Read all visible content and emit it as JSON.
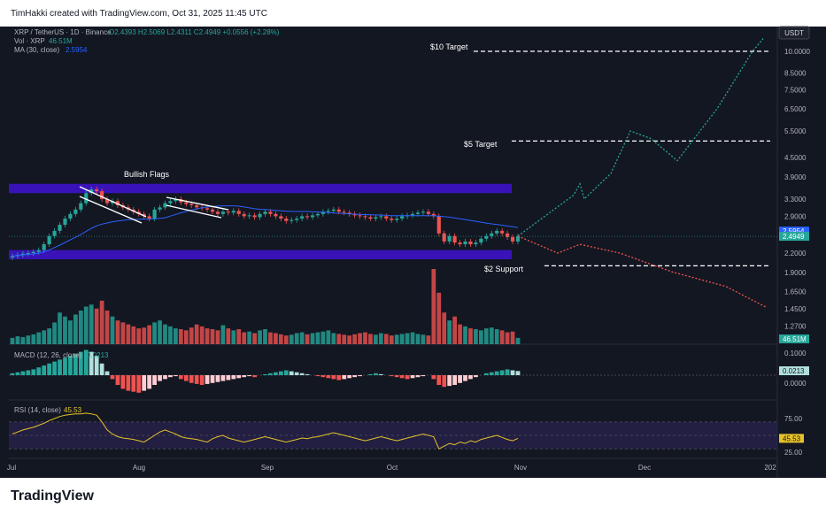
{
  "header": {
    "attribution": "TimHakki created with TradingView.com, Oct 31, 2025 11:45 UTC"
  },
  "legend": {
    "symbol": "XRP / TetherUS · 1D · Binance",
    "ohlc": "O2.4393 H2.5069 L2.4311 C2.4949 +0.0556 (+2.28%)",
    "vol_label": "Vol · XRP",
    "vol_value": "46.51M",
    "ma_label": "MA (30, close)",
    "ma_value": "2.5954"
  },
  "currency_button": "USDT",
  "footer": {
    "logo": "TradingView"
  },
  "colors": {
    "bg": "#131722",
    "up": "#26a69a",
    "down": "#ef5350",
    "zone": "#3913b8",
    "ma": "#2962ff",
    "rsi": "#e6c229",
    "rsi_band": "#2a2350"
  },
  "chart_data": [
    {
      "type": "candlestick",
      "name": "price",
      "price_axis_labels": [
        "10.0000",
        "8.5000",
        "7.5000",
        "6.5000",
        "5.5000",
        "4.5000",
        "3.9000",
        "3.3000",
        "2.9000",
        "2.2000",
        "1.9000",
        "1.6500",
        "1.4500",
        "1.2700"
      ],
      "time_axis_labels": [
        "Jul",
        "Aug",
        "Sep",
        "Oct",
        "Nov",
        "Dec",
        "202"
      ],
      "current_price_label": "2.4949",
      "ma_label_value": "2.5954",
      "annotations": [
        {
          "text": "Bullish Flags",
          "type": "label"
        },
        {
          "text": "$10 Target",
          "type": "level",
          "value": 10.0
        },
        {
          "text": "$5 Target",
          "type": "level",
          "value": 5.1
        },
        {
          "text": "$2 Support",
          "type": "level",
          "value": 2.0
        }
      ],
      "resistance_zone": [
        3.45,
        3.7
      ],
      "support_zone": [
        2.1,
        2.25
      ],
      "closes": [
        2.15,
        2.17,
        2.19,
        2.2,
        2.22,
        2.25,
        2.35,
        2.5,
        2.6,
        2.72,
        2.85,
        2.95,
        3.05,
        3.2,
        3.45,
        3.55,
        3.5,
        3.3,
        3.2,
        3.25,
        3.15,
        3.1,
        3.05,
        3.0,
        2.95,
        2.9,
        2.85,
        3.05,
        3.1,
        3.2,
        3.25,
        3.3,
        3.22,
        3.18,
        3.15,
        3.1,
        3.08,
        3.05,
        3.0,
        2.95,
        3.0,
        2.98,
        3.02,
        2.95,
        2.9,
        2.92,
        2.88,
        2.95,
        3.0,
        2.95,
        2.9,
        2.85,
        2.8,
        2.82,
        2.85,
        2.9,
        2.88,
        2.92,
        2.95,
        3.0,
        3.02,
        3.05,
        3.0,
        2.98,
        2.95,
        2.92,
        2.9,
        2.88,
        2.85,
        2.88,
        2.9,
        2.85,
        2.82,
        2.85,
        2.9,
        2.92,
        2.95,
        2.98,
        3.0,
        2.95,
        2.9,
        2.55,
        2.4,
        2.5,
        2.38,
        2.35,
        2.4,
        2.35,
        2.38,
        2.45,
        2.5,
        2.55,
        2.6,
        2.55,
        2.48,
        2.4,
        2.4949
      ],
      "projection_bullish": [
        2.5,
        3.4,
        3.7,
        3.3,
        4.0,
        5.5,
        5.2,
        4.4,
        6.5,
        10.0,
        11.0
      ],
      "projection_bearish": [
        2.5,
        2.2,
        2.35,
        2.2,
        1.9,
        1.7,
        1.45
      ]
    },
    {
      "type": "bar",
      "name": "Vol · XRP",
      "last_value_label": "46.51M",
      "values": [
        16,
        20,
        18,
        22,
        25,
        30,
        35,
        40,
        55,
        80,
        70,
        60,
        75,
        85,
        95,
        100,
        90,
        110,
        85,
        70,
        60,
        55,
        50,
        45,
        40,
        42,
        48,
        55,
        60,
        50,
        45,
        40,
        38,
        35,
        42,
        50,
        45,
        40,
        38,
        35,
        48,
        40,
        35,
        38,
        30,
        32,
        28,
        35,
        38,
        30,
        28,
        25,
        22,
        24,
        28,
        30,
        25,
        28,
        30,
        32,
        35,
        28,
        26,
        24,
        22,
        25,
        28,
        30,
        26,
        24,
        28,
        26,
        22,
        24,
        26,
        28,
        30,
        26,
        24,
        22,
        190,
        130,
        80,
        60,
        70,
        50,
        45,
        40,
        38,
        35,
        40,
        42,
        38,
        35,
        30,
        32,
        16
      ]
    },
    {
      "type": "bar",
      "name": "MACD (12, 26, close)",
      "visible_value": "0.0213",
      "histogram": [
        0.01,
        0.015,
        0.02,
        0.025,
        0.03,
        0.04,
        0.05,
        0.06,
        0.07,
        0.08,
        0.09,
        0.1,
        0.11,
        0.12,
        0.13,
        0.12,
        0.1,
        0.06,
        0.02,
        -0.02,
        -0.05,
        -0.07,
        -0.08,
        -0.085,
        -0.09,
        -0.08,
        -0.07,
        -0.05,
        -0.03,
        -0.02,
        -0.01,
        -0.005,
        -0.02,
        -0.03,
        -0.04,
        -0.045,
        -0.05,
        -0.045,
        -0.04,
        -0.035,
        -0.03,
        -0.025,
        -0.02,
        -0.015,
        -0.01,
        -0.005,
        -0.01,
        0.0,
        0.005,
        0.01,
        0.015,
        0.02,
        0.025,
        0.02,
        0.015,
        0.01,
        0.005,
        0.0,
        -0.005,
        -0.01,
        -0.015,
        -0.02,
        -0.025,
        -0.02,
        -0.015,
        -0.01,
        -0.005,
        0.0,
        0.005,
        0.01,
        0.005,
        0.0,
        -0.005,
        -0.01,
        -0.015,
        -0.02,
        -0.015,
        -0.01,
        -0.005,
        0.0,
        -0.02,
        -0.05,
        -0.06,
        -0.055,
        -0.05,
        -0.04,
        -0.03,
        -0.02,
        -0.01,
        0.0,
        0.01,
        0.015,
        0.02,
        0.025,
        0.03,
        0.025,
        0.0213
      ],
      "axis_labels": [
        "0.1000",
        "0.0000"
      ]
    },
    {
      "type": "line",
      "name": "RSI (14, close)",
      "visible_value": "45.53",
      "axis_labels": [
        "75.00",
        "25.00"
      ],
      "values": [
        52,
        55,
        58,
        60,
        62,
        65,
        68,
        72,
        75,
        78,
        80,
        81,
        82,
        82,
        83,
        82,
        80,
        70,
        58,
        52,
        48,
        46,
        45,
        44,
        42,
        40,
        45,
        50,
        55,
        58,
        55,
        52,
        48,
        46,
        45,
        44,
        42,
        40,
        45,
        48,
        50,
        46,
        44,
        42,
        40,
        42,
        44,
        46,
        48,
        46,
        44,
        42,
        40,
        42,
        44,
        46,
        45,
        47,
        48,
        50,
        52,
        54,
        52,
        50,
        48,
        46,
        44,
        42,
        44,
        46,
        48,
        46,
        44,
        42,
        44,
        46,
        48,
        50,
        52,
        50,
        48,
        30,
        34,
        38,
        36,
        40,
        38,
        42,
        40,
        44,
        46,
        48,
        50,
        47,
        44,
        42,
        45.53
      ]
    }
  ]
}
